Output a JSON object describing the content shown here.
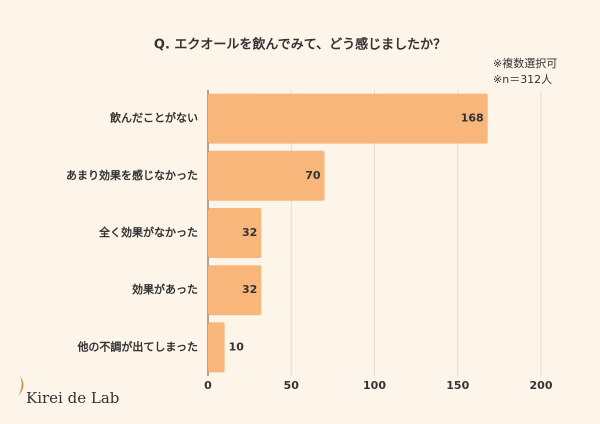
{
  "chart_data": {
    "type": "bar",
    "orientation": "horizontal",
    "title": "Q. エクオールを飲んでみて、どう感じましたか？",
    "notes": [
      "※複数選択可",
      "※n＝312人"
    ],
    "categories": [
      "飲んだことがない",
      "あまり効果を感じなかった",
      "全く効果がなかった",
      "効果があった",
      "他の不調が出てしまった"
    ],
    "values": [
      168,
      70,
      32,
      32,
      10
    ],
    "color": "#f8b67b",
    "xlim": [
      0,
      200
    ],
    "xticks": [
      0,
      50,
      100,
      150,
      200
    ],
    "grid": true
  },
  "logo": "Kirei de Lab"
}
